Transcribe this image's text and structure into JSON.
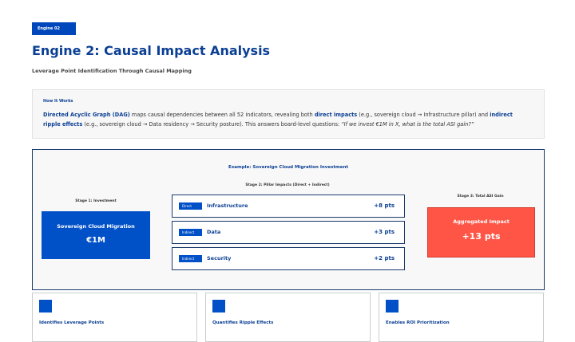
{
  "header": {
    "badge": "Engine 02",
    "title": "Engine 2: Causal Impact Analysis",
    "subtitle": "Leverage Point Identification Through Causal Mapping"
  },
  "how_it_works": {
    "heading": "How It Works",
    "parts": [
      {
        "text": "Directed Acyclic Graph (DAG)",
        "bold": true
      },
      {
        "text": " maps causal dependencies between all 52 indicators, revealing both "
      },
      {
        "text": "direct impacts",
        "bold": true
      },
      {
        "text": " (e.g., sovereign cloud → Infrastructure pillar) and "
      },
      {
        "text": "indirect ripple effects",
        "bold": true
      },
      {
        "text": " (e.g., sovereign cloud → Data residency → Security posture). This answers board-level questions: "
      },
      {
        "text": "“If we invest €1M in X, what is the total ASI gain?”",
        "italic": true
      }
    ]
  },
  "example": {
    "title": "Example: Sovereign Cloud Migration Investment",
    "stage1": {
      "label": "Stage 1: Investment",
      "name": "Sovereign Cloud Migration",
      "amount": "€1M"
    },
    "stage2": {
      "label": "Stage 2: Pillar Impacts (Direct + Indirect)",
      "rows": [
        {
          "tag": "Direct",
          "pillar": "Infrastructure",
          "impact": "+8 pts"
        },
        {
          "tag": "Indirect",
          "pillar": "Data",
          "impact": "+3 pts"
        },
        {
          "tag": "Indirect",
          "pillar": "Security",
          "impact": "+2 pts"
        }
      ]
    },
    "stage3": {
      "label": "Stage 3: Total ASI Gain",
      "name": "Aggregated Impact",
      "total": "+13 pts"
    }
  },
  "cards": [
    {
      "title": "Identifies Leverage Points"
    },
    {
      "title": "Quantifies Ripple Effects"
    },
    {
      "title": "Enables ROI Prioritization"
    }
  ]
}
